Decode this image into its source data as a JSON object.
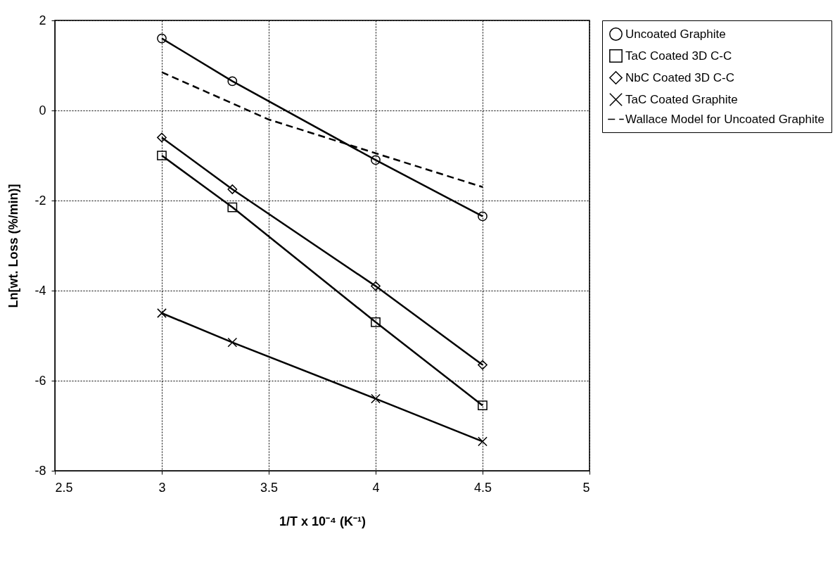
{
  "chart_data": {
    "type": "line",
    "xlabel": "1/T x 10⁻⁴ (K⁻¹)",
    "ylabel": "Ln[wt. Loss (%/min)]",
    "x": [
      3,
      3.33,
      4,
      4.5
    ],
    "series": [
      {
        "name": "Uncoated Graphite",
        "color": "#000000",
        "marker": "circle",
        "values": [
          1.6,
          0.65,
          -1.1,
          -2.35
        ]
      },
      {
        "name": "TaC Coated 3D C-C",
        "color": "#000000",
        "marker": "square",
        "values": [
          -1.0,
          -2.15,
          -4.7,
          -6.55
        ]
      },
      {
        "name": "NbC Coated 3D C-C",
        "color": "#000000",
        "marker": "diamond",
        "values": [
          -0.6,
          -1.75,
          -3.9,
          -5.65
        ]
      },
      {
        "name": "TaC Coated Graphite",
        "color": "#000000",
        "marker": "cross",
        "values": [
          -4.5,
          -5.15,
          -6.4,
          -7.35
        ]
      },
      {
        "name": "Wallace Model for Uncoated Graphite",
        "color": "#000000",
        "marker": "none",
        "line_style": "dashed",
        "x": [
          3,
          3.5,
          4,
          4.5
        ],
        "values": [
          0.85,
          -0.2,
          -0.95,
          -1.7
        ]
      }
    ],
    "xlim": [
      2.5,
      5
    ],
    "xticks": [
      2.5,
      3,
      3.5,
      4,
      4.5,
      5
    ],
    "ylim": [
      -8,
      2
    ],
    "yticks": [
      -8,
      -6,
      -4,
      -2,
      0,
      2
    ],
    "grid": true,
    "legend": "top right",
    "line_style": "solid"
  }
}
